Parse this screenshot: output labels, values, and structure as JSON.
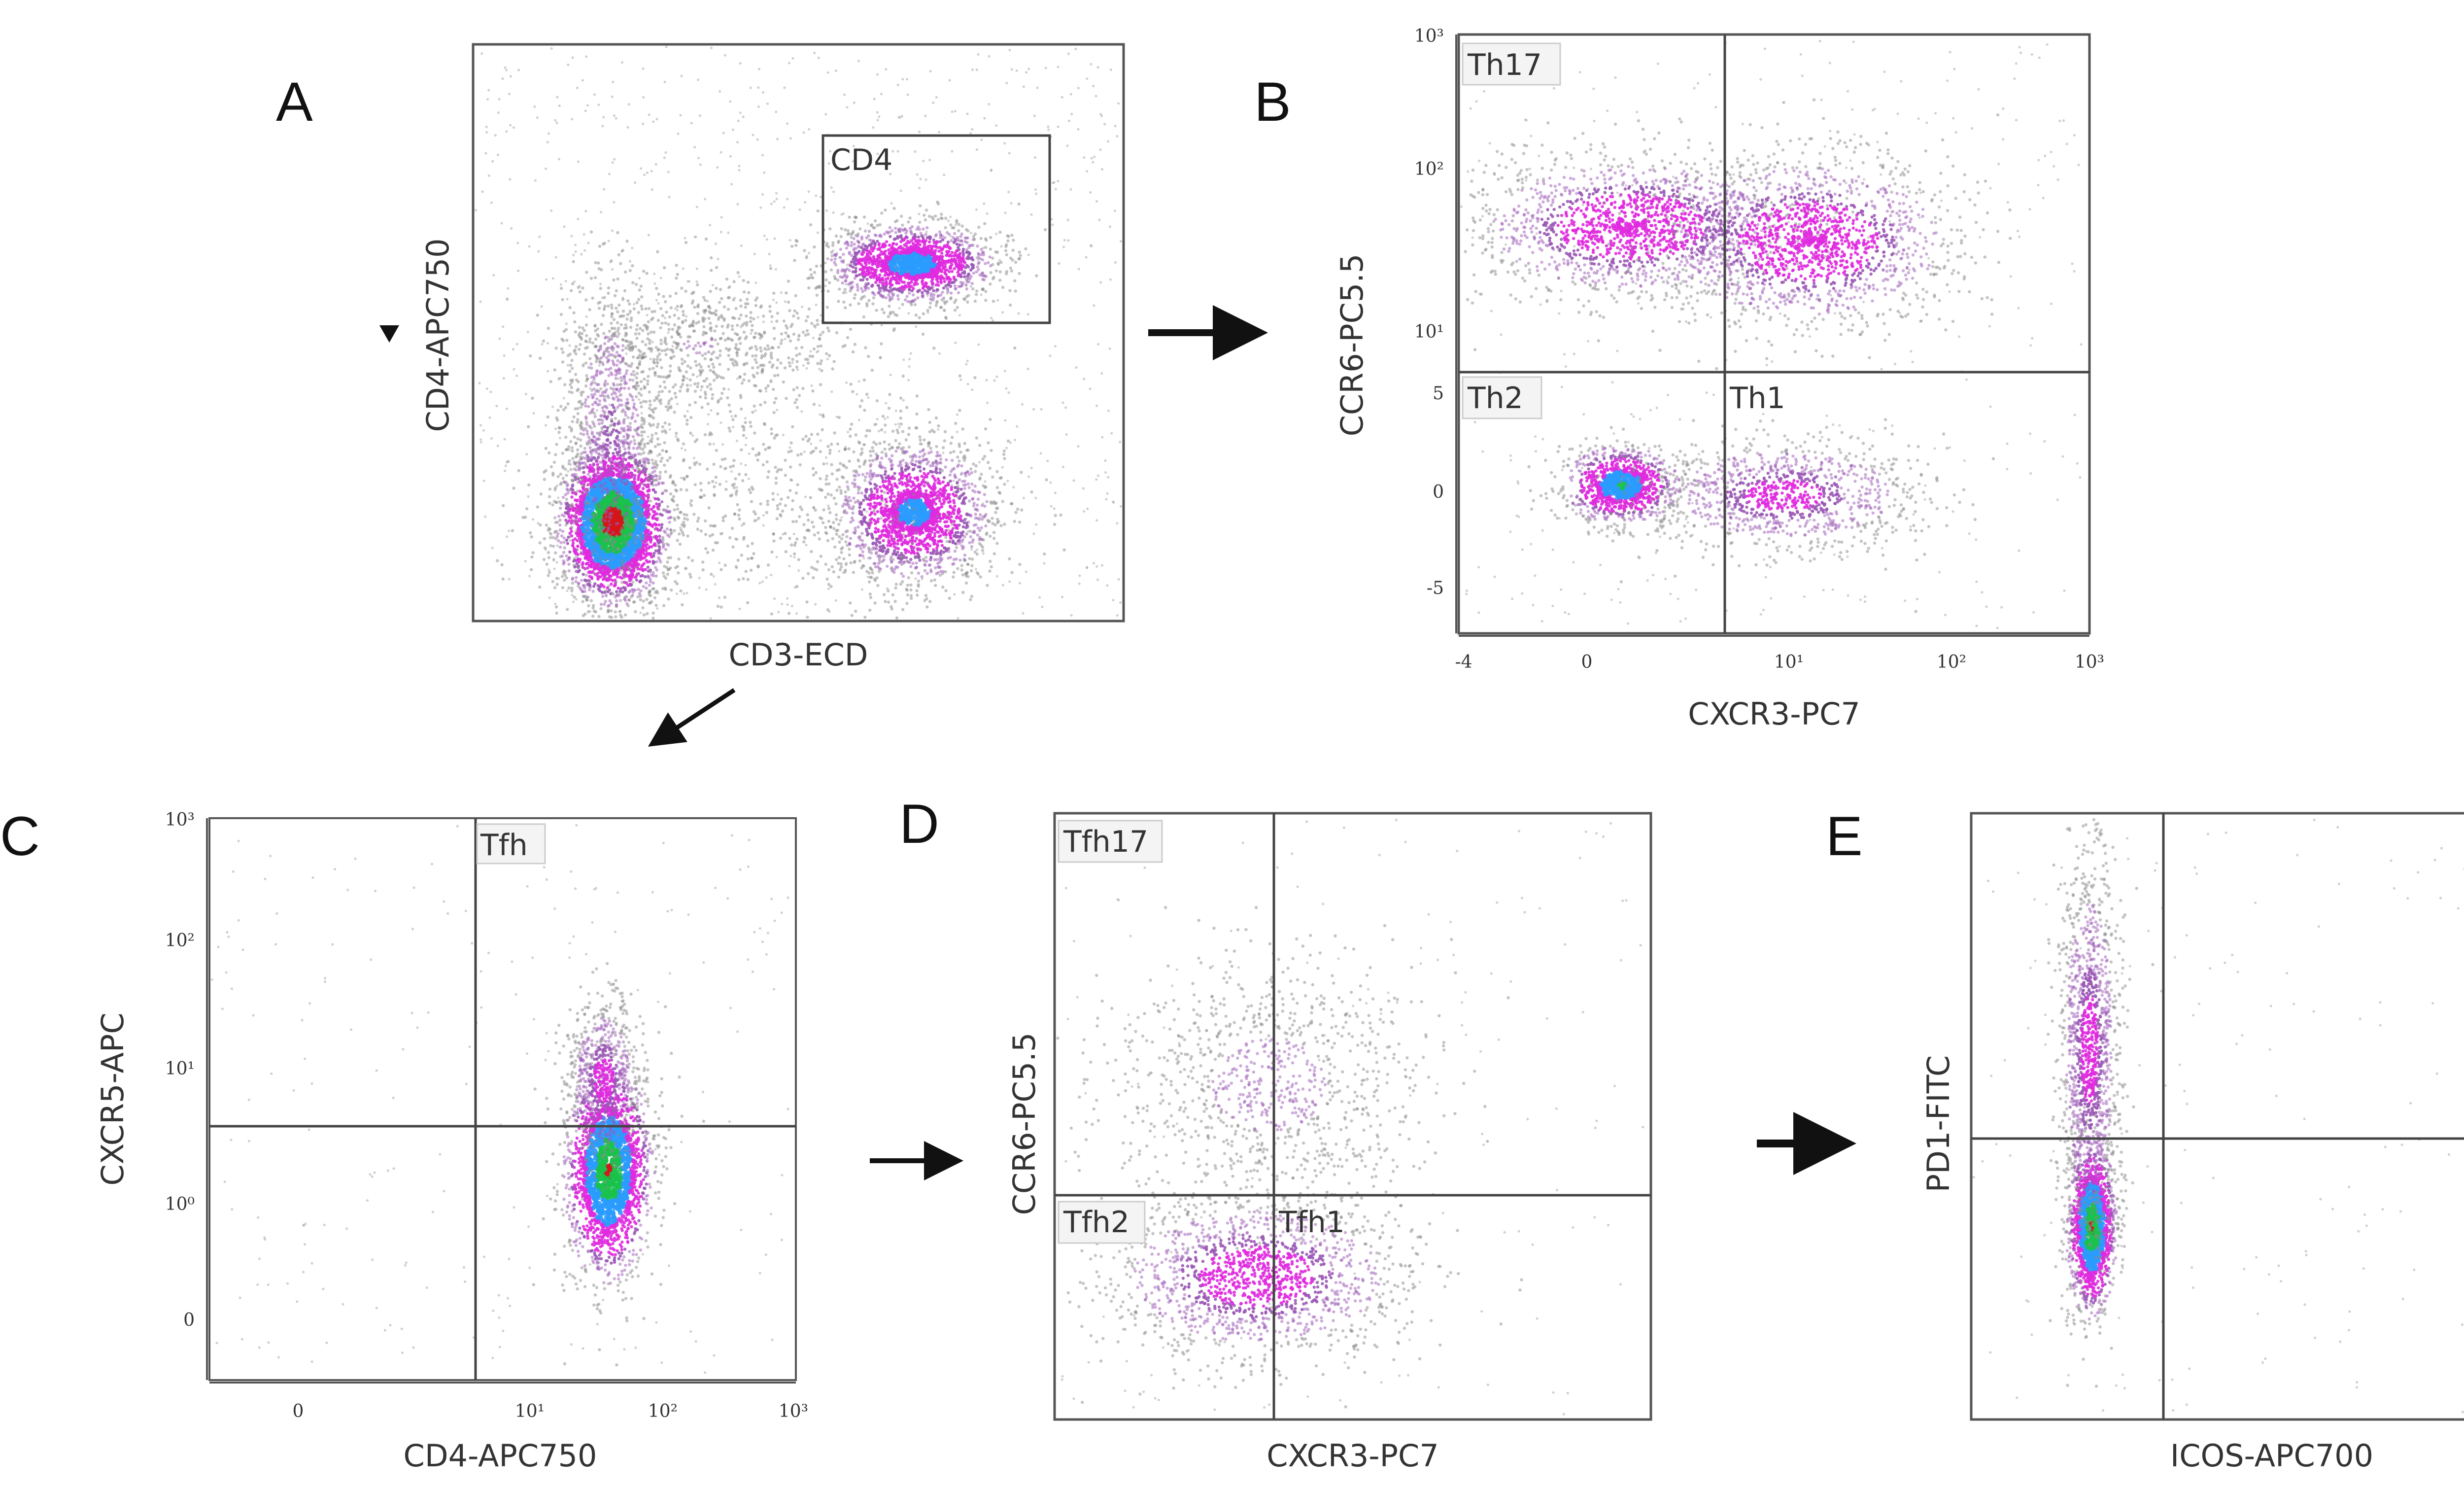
{
  "figure": {
    "panels": {
      "A": {
        "letter": "A",
        "xlabel": "CD3-ECD",
        "ylabel": "CD4-APC750",
        "gates": [
          {
            "label": "CD4"
          }
        ]
      },
      "B": {
        "letter": "B",
        "xlabel": "CXCR3-PC7",
        "ylabel": "CCR6-PC5.5",
        "gates": [
          {
            "label": "Th17"
          },
          {
            "label": "Th2"
          },
          {
            "label": "Th1"
          }
        ],
        "xticks": [
          "-4",
          "0",
          "10¹",
          "10²",
          "10³"
        ],
        "yticks": [
          "10³",
          "10²",
          "10¹",
          "5",
          "0",
          "-5"
        ]
      },
      "C": {
        "letter": "C",
        "xlabel": "CD4-APC750",
        "ylabel": "CXCR5-APC",
        "gates": [
          {
            "label": "Tfh"
          }
        ],
        "xticks": [
          "0",
          "10¹",
          "10²",
          "10³"
        ],
        "yticks": [
          "10³",
          "10²",
          "10¹",
          "10⁰",
          "0"
        ]
      },
      "D": {
        "letter": "D",
        "xlabel": "CXCR3-PC7",
        "ylabel": "CCR6-PC5.5",
        "gates": [
          {
            "label": "Tfh17"
          },
          {
            "label": "Tfh2"
          },
          {
            "label": "Tfh1"
          }
        ]
      },
      "E": {
        "letter": "E",
        "xlabel": "ICOS-APC700",
        "ylabel": "PD1-FITC"
      }
    },
    "arrows": [
      {
        "from": "A",
        "to": "B"
      },
      {
        "from": "A",
        "to": "C"
      },
      {
        "from": "C",
        "to": "D"
      },
      {
        "from": "D",
        "to": "E"
      }
    ]
  }
}
